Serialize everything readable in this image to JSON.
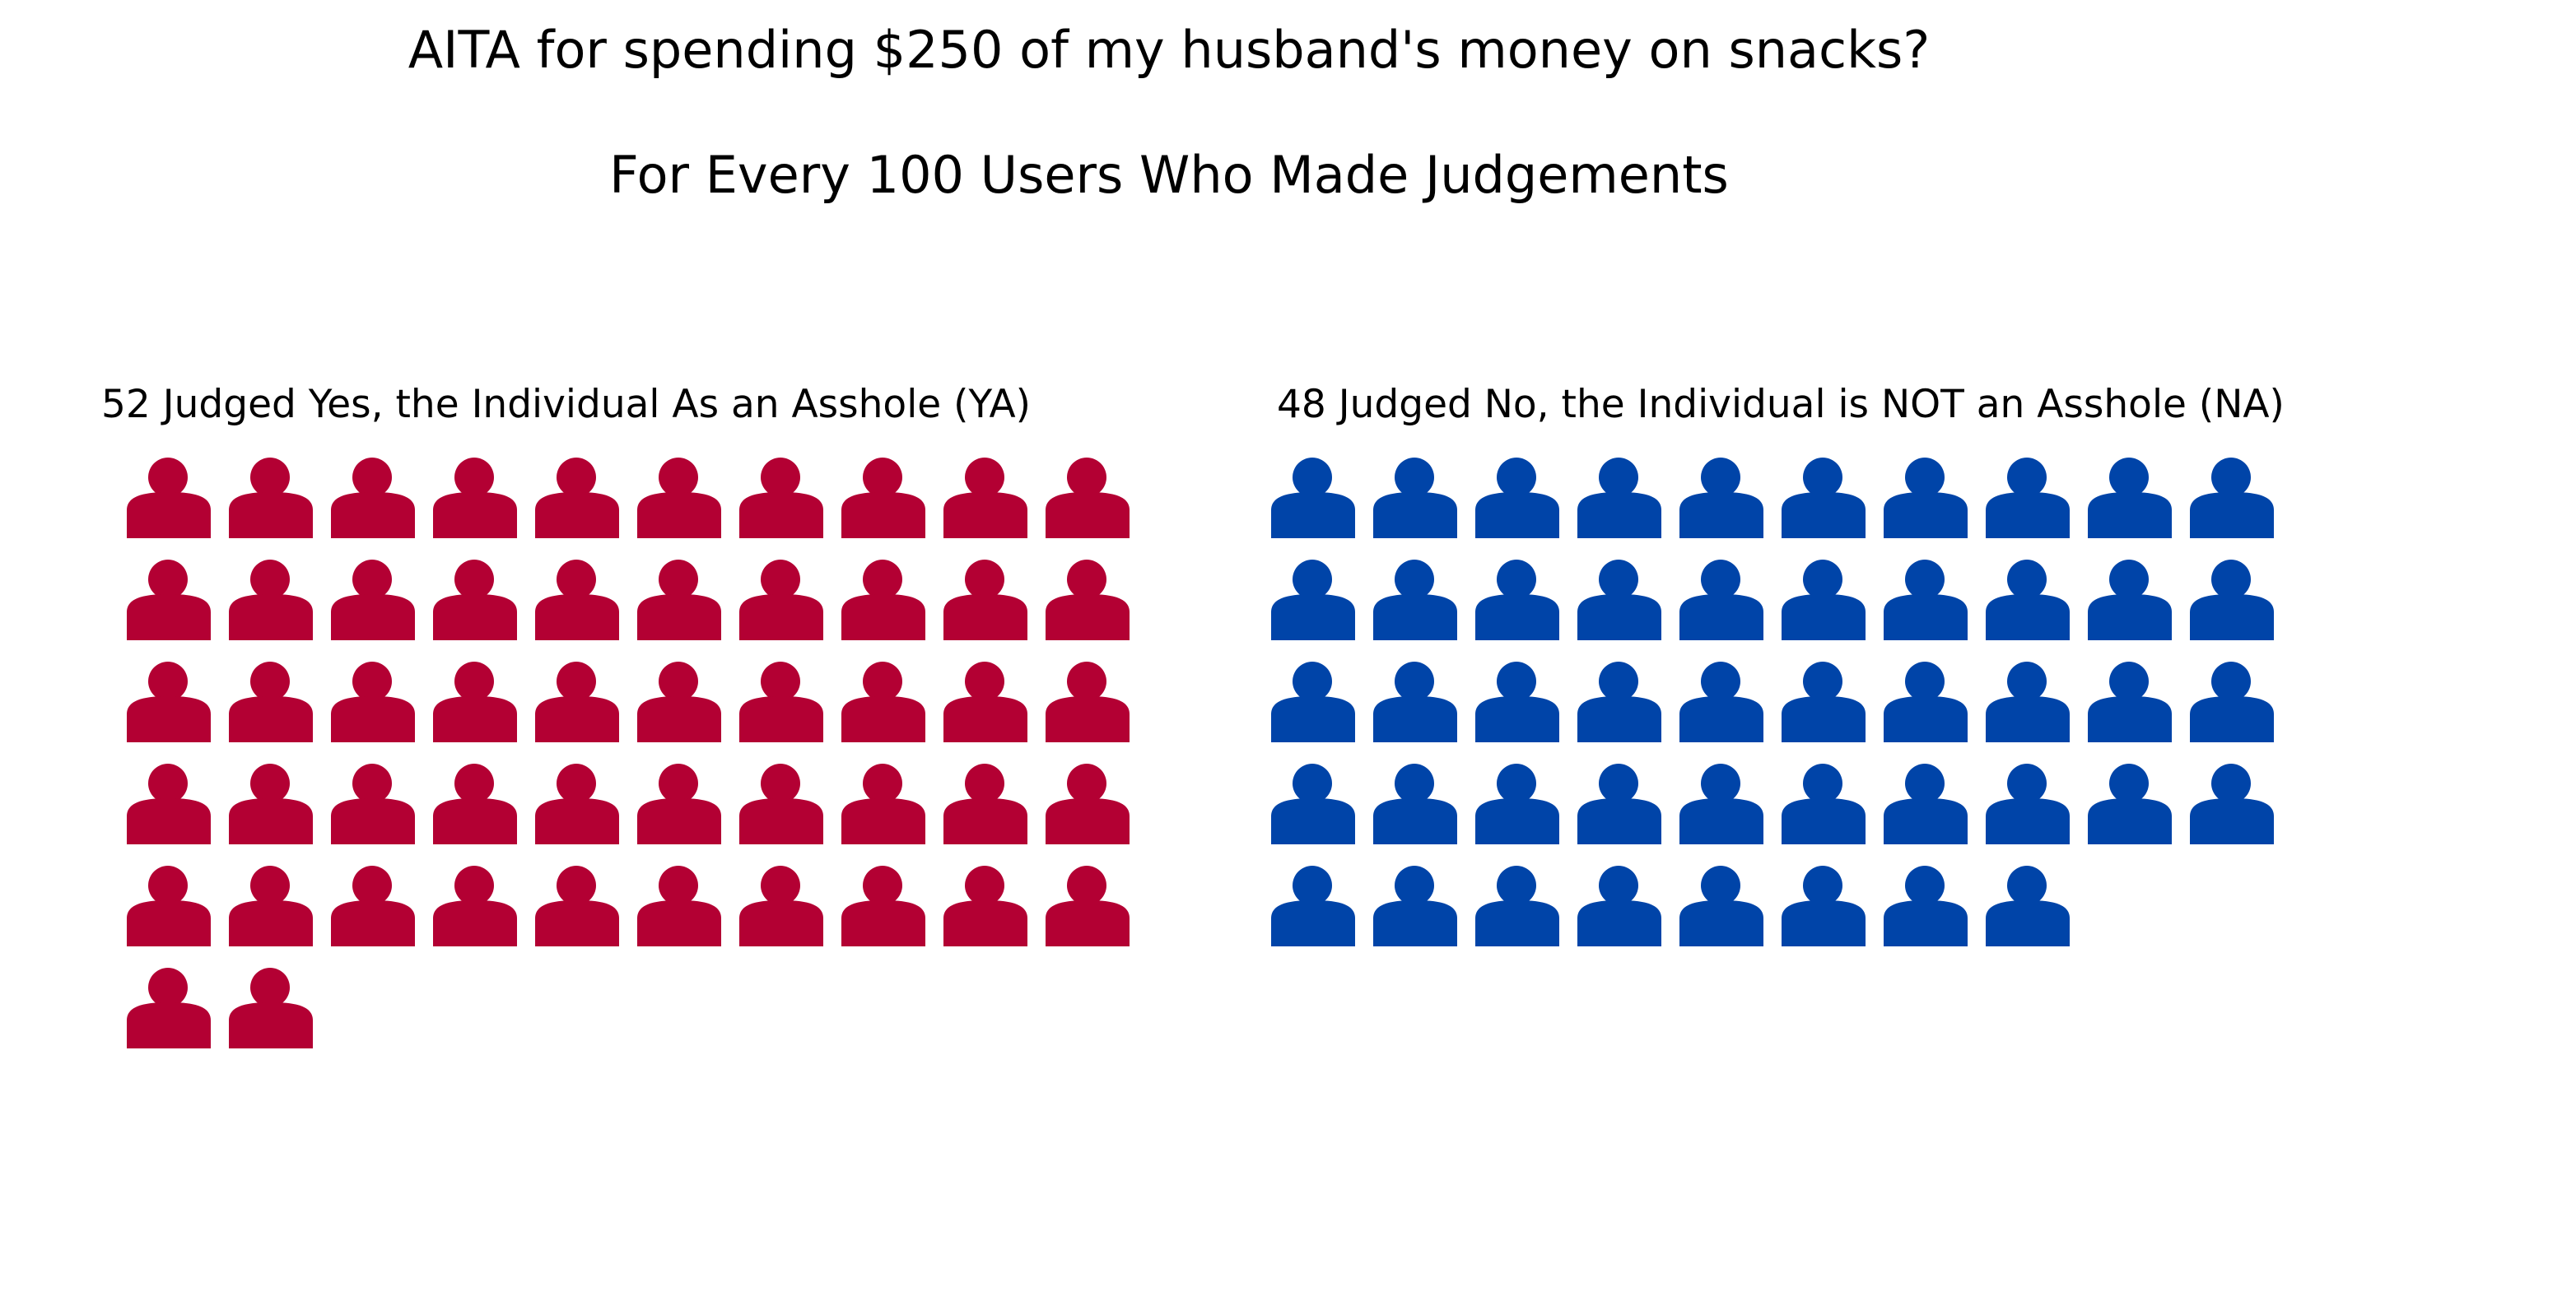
{
  "chart_data": {
    "type": "pictograph",
    "title": "AITA for spending $250 of my husband's money on snacks?",
    "subtitle": "For Every 100 Users Who Made Judgements",
    "icon": "person-icon",
    "icons_per_row": 10,
    "groups": [
      {
        "label": "52 Judged Yes, the Individual As an Asshole (YA)",
        "value": 52,
        "color": "#b30033"
      },
      {
        "label": "48 Judged No, the Individual is NOT an Asshole (NA)",
        "value": 48,
        "color": "#0044a8"
      }
    ]
  }
}
